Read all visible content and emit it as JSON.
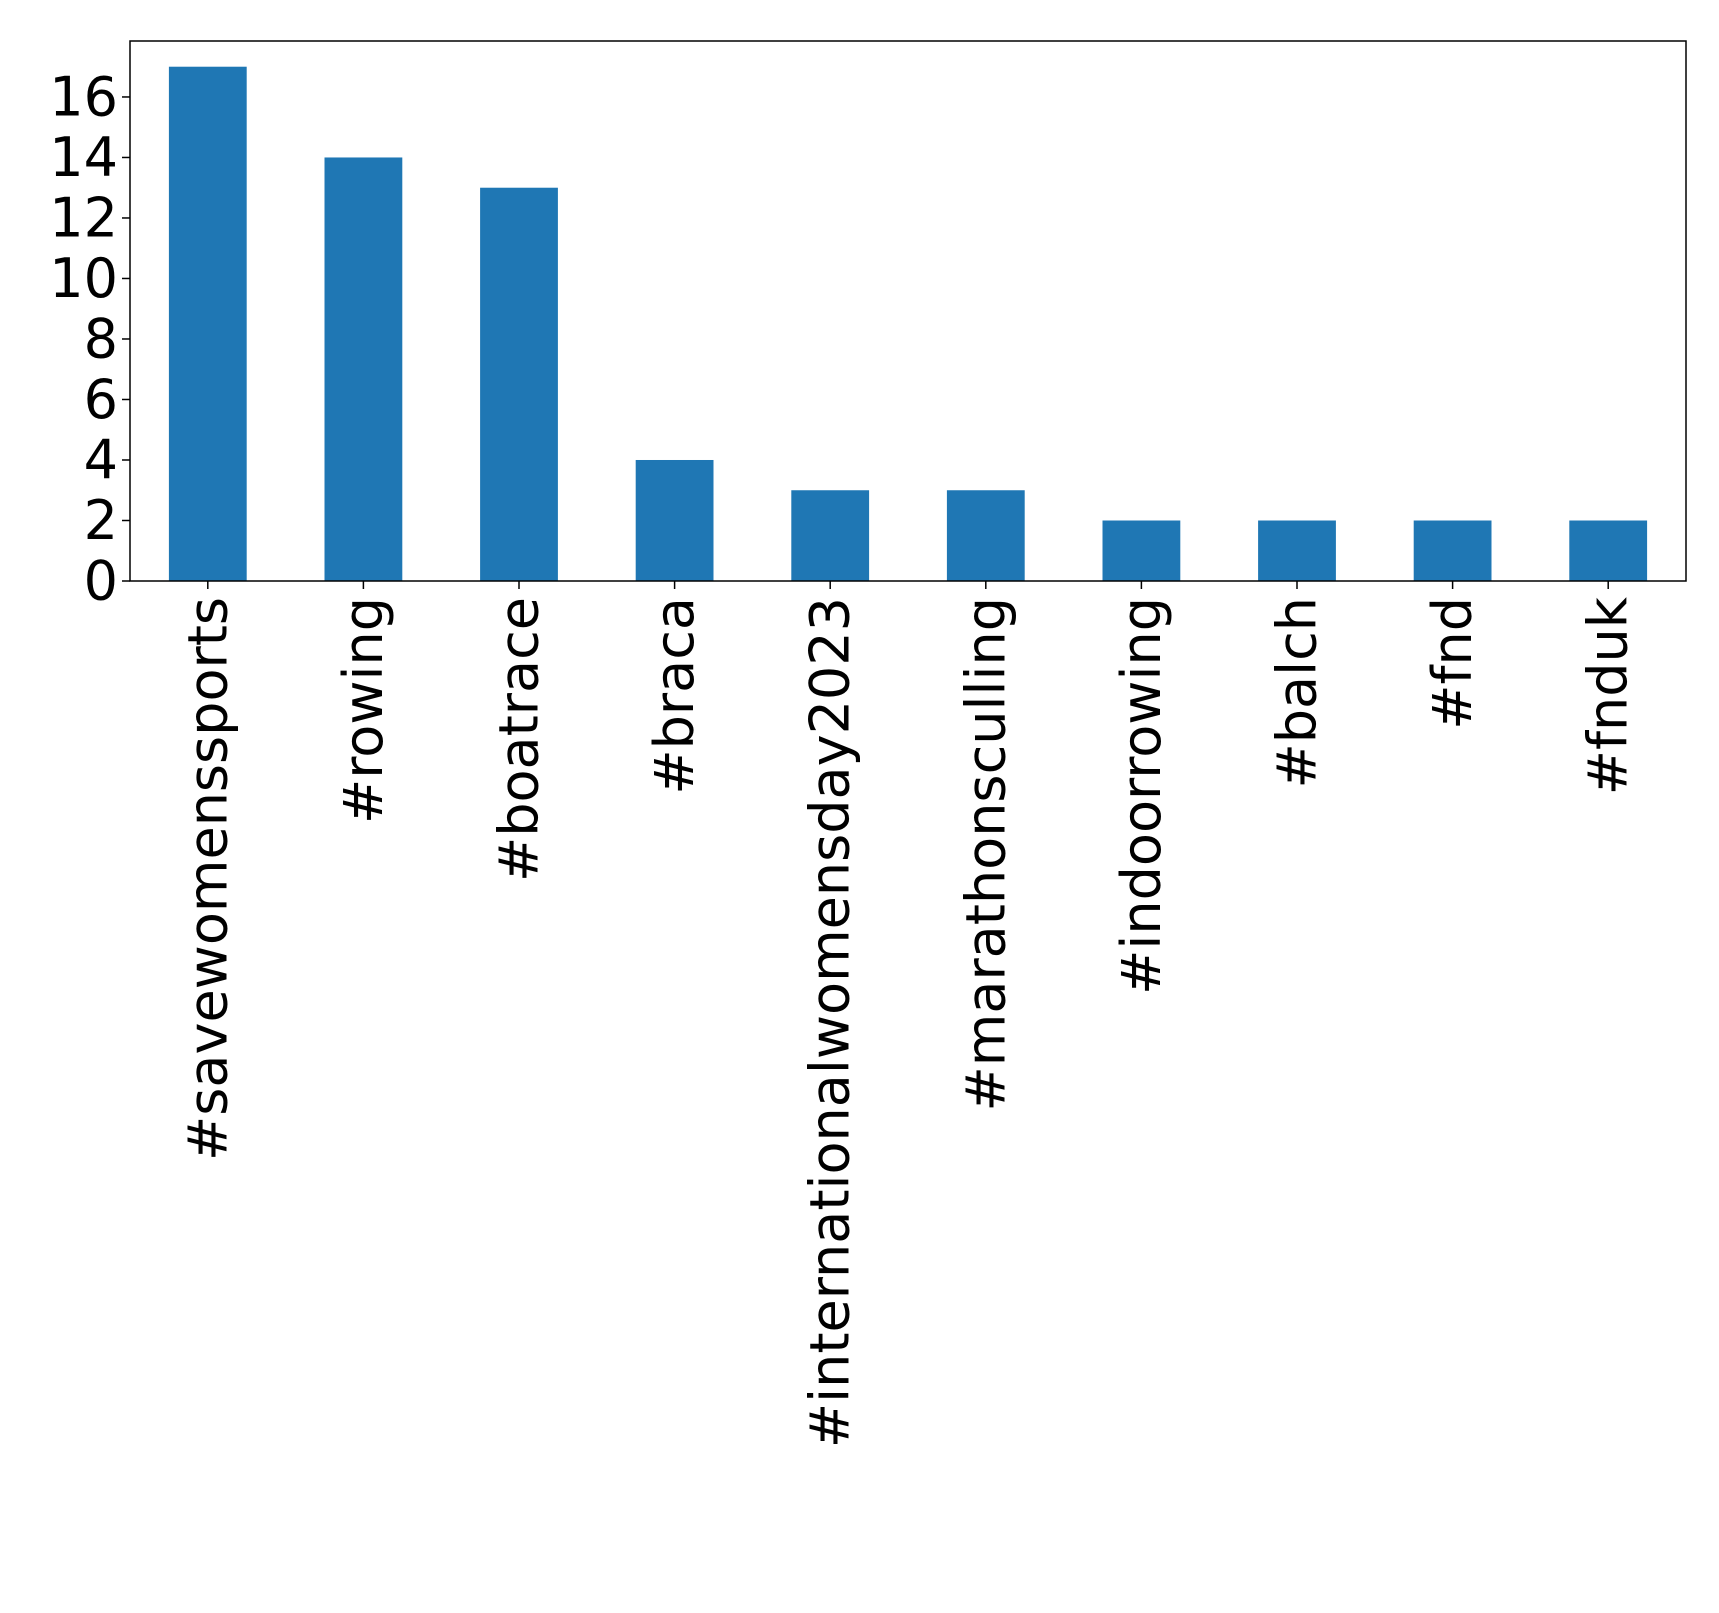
{
  "chart_data": {
    "type": "bar",
    "title": "",
    "xlabel": "",
    "ylabel": "",
    "categories": [
      "#savewomenssports",
      "#rowing",
      "#boatrace",
      "#braca",
      "#internationalwomensday2023",
      "#marathonsculling",
      "#indoorrowing",
      "#balch",
      "#fnd",
      "#fnduk"
    ],
    "values": [
      17,
      14,
      13,
      4,
      3,
      3,
      2,
      2,
      2,
      2
    ],
    "ylim": [
      0,
      17.85
    ],
    "yticks": [
      0,
      2,
      4,
      6,
      8,
      10,
      12,
      14,
      16
    ],
    "grid": false,
    "legend": "none",
    "colors": {
      "bar": "#1f77b4",
      "axis": "#000000",
      "background": "#ffffff"
    }
  }
}
